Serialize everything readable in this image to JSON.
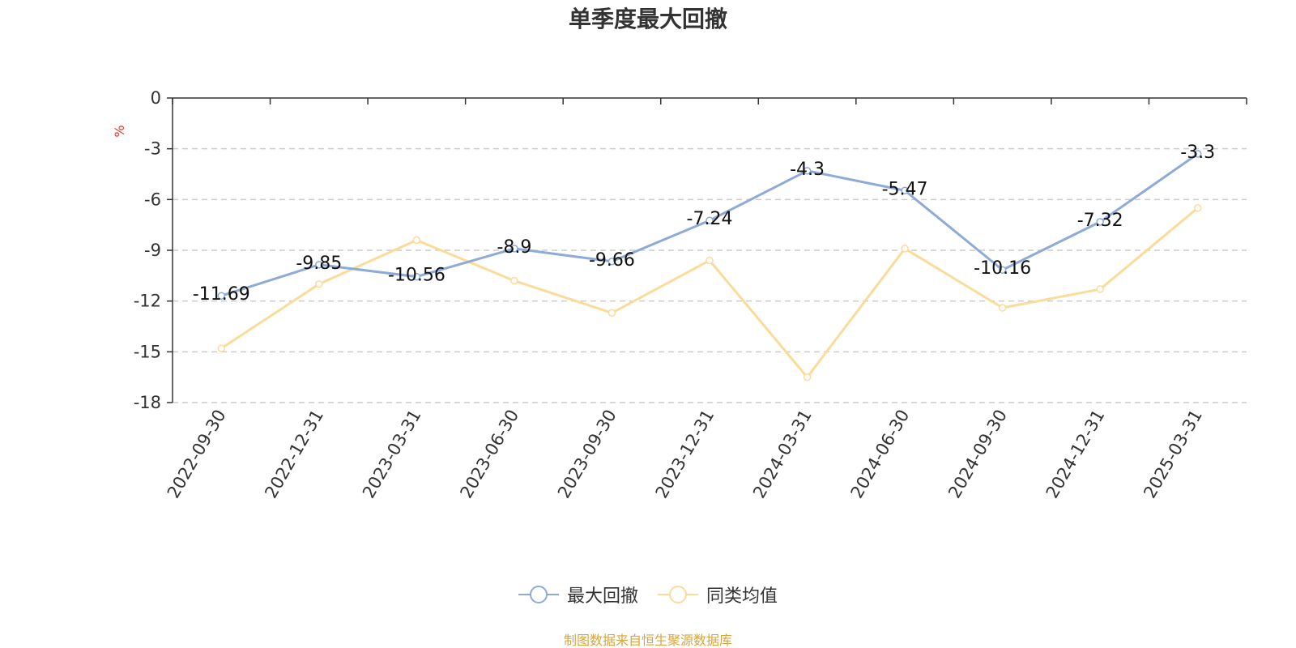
{
  "chart_data": {
    "type": "line",
    "title": "单季度最大回撤",
    "ylabel": "%",
    "ylim": [
      -18,
      0
    ],
    "yticks": [
      0,
      -3,
      -6,
      -9,
      -12,
      -15,
      -18
    ],
    "grid": true,
    "legend_position": "bottom-center",
    "categories": [
      "2022-09-30",
      "2022-12-31",
      "2023-03-31",
      "2023-06-30",
      "2023-09-30",
      "2023-12-31",
      "2024-03-31",
      "2024-06-30",
      "2024-09-30",
      "2024-12-31",
      "2025-03-31"
    ],
    "series": [
      {
        "name": "最大回撤",
        "color": "#8eaad6",
        "values": [
          -11.69,
          -9.85,
          -10.56,
          -8.9,
          -9.66,
          -7.24,
          -4.3,
          -5.47,
          -10.16,
          -7.32,
          -3.3
        ],
        "data_labels": [
          "-11.69",
          "-9.85",
          "-10.56",
          "-8.9",
          "-9.66",
          "-7.24",
          "-4.3",
          "-5.47",
          "-10.16",
          "-7.32",
          "-3.3"
        ]
      },
      {
        "name": "同类均值",
        "color": "#fbdb9a",
        "values": [
          -14.8,
          -11.0,
          -8.4,
          -10.8,
          -12.7,
          -9.6,
          -16.5,
          -8.9,
          -12.4,
          -11.3,
          -6.5
        ]
      }
    ]
  },
  "ylabel_color": "#e5342a",
  "source_note": {
    "text": "制图数据来自恒生聚源数据库",
    "color": "#d9a43c"
  }
}
